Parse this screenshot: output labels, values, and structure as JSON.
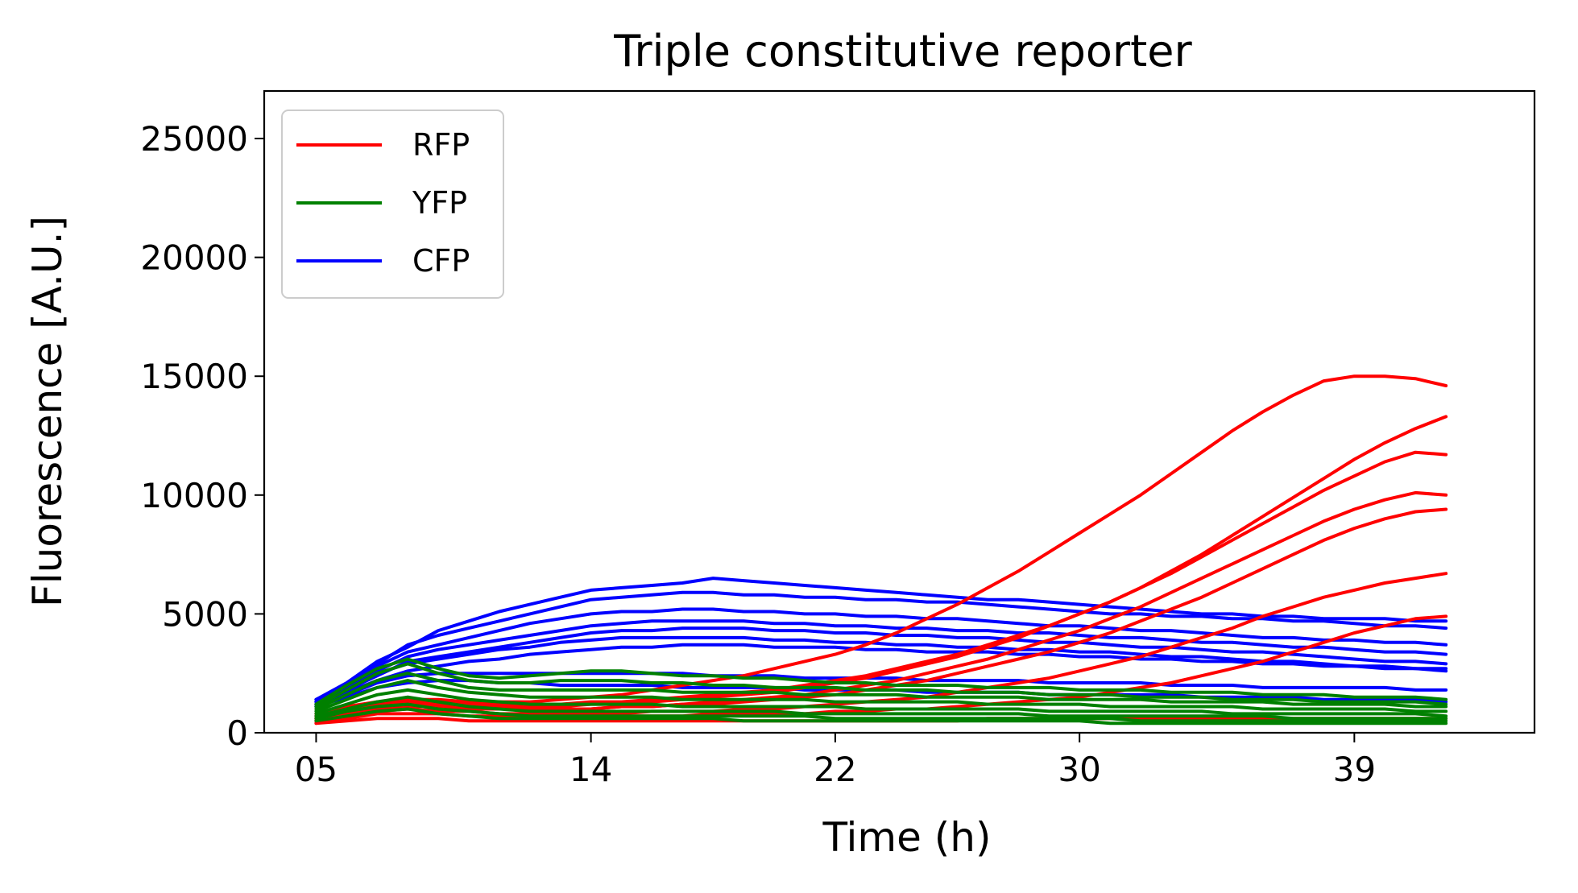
{
  "chart_data": {
    "type": "line",
    "title": "Triple constitutive reporter",
    "xlabel": "Time (h)",
    "ylabel": "Fluorescence [A.U.]",
    "x_ticks": [
      "05",
      "14",
      "22",
      "30",
      "39"
    ],
    "y_ticks": [
      "0",
      "5000",
      "10000",
      "15000",
      "20000",
      "25000"
    ],
    "xlim": [
      3.3,
      44.9
    ],
    "ylim": [
      0,
      27000
    ],
    "grid": false,
    "legend_position": "top-left",
    "legend": [
      {
        "label": "RFP",
        "color": "#ff0000"
      },
      {
        "label": "YFP",
        "color": "#008000"
      },
      {
        "label": "CFP",
        "color": "#0000ff"
      }
    ],
    "x": [
      5,
      6,
      7,
      8,
      9,
      10,
      11,
      12,
      13,
      14,
      15,
      16,
      17,
      18,
      19,
      20,
      21,
      22,
      23,
      24,
      25,
      26,
      27,
      28,
      29,
      30,
      31,
      32,
      33,
      34,
      35,
      36,
      37,
      38,
      39,
      40,
      41,
      42
    ],
    "series": [
      {
        "group": "CFP",
        "color": "#0000ff",
        "values": [
          1400,
          2100,
          3000,
          3600,
          4300,
          4700,
          5100,
          5400,
          5700,
          6000,
          6100,
          6200,
          6300,
          6500,
          6400,
          6300,
          6200,
          6100,
          6000,
          5900,
          5800,
          5700,
          5600,
          5600,
          5500,
          5400,
          5300,
          5200,
          5100,
          5000,
          5000,
          4900,
          4900,
          4800,
          4800,
          4800,
          4700,
          4700
        ]
      },
      {
        "group": "CFP",
        "color": "#0000ff",
        "values": [
          1300,
          2000,
          2900,
          3700,
          4100,
          4400,
          4700,
          5000,
          5300,
          5600,
          5700,
          5800,
          5900,
          5900,
          5800,
          5800,
          5700,
          5700,
          5600,
          5600,
          5500,
          5500,
          5400,
          5300,
          5200,
          5100,
          5000,
          5000,
          4900,
          4900,
          4800,
          4800,
          4700,
          4700,
          4600,
          4500,
          4500,
          4400
        ]
      },
      {
        "group": "CFP",
        "color": "#0000ff",
        "values": [
          1400,
          2000,
          2800,
          3400,
          3700,
          4000,
          4300,
          4600,
          4800,
          5000,
          5100,
          5100,
          5200,
          5200,
          5100,
          5100,
          5000,
          5000,
          4900,
          4900,
          4800,
          4800,
          4700,
          4600,
          4500,
          4500,
          4400,
          4300,
          4300,
          4200,
          4100,
          4000,
          4000,
          3900,
          3900,
          3800,
          3800,
          3700
        ]
      },
      {
        "group": "CFP",
        "color": "#0000ff",
        "values": [
          1300,
          1900,
          2600,
          3200,
          3500,
          3700,
          3900,
          4100,
          4300,
          4500,
          4600,
          4700,
          4700,
          4700,
          4700,
          4600,
          4600,
          4500,
          4500,
          4400,
          4400,
          4300,
          4300,
          4200,
          4200,
          4100,
          4000,
          4000,
          3900,
          3800,
          3800,
          3700,
          3600,
          3600,
          3500,
          3400,
          3400,
          3300
        ]
      },
      {
        "group": "CFP",
        "color": "#0000ff",
        "values": [
          1200,
          1800,
          2400,
          3000,
          3200,
          3400,
          3600,
          3800,
          4000,
          4200,
          4300,
          4300,
          4400,
          4400,
          4400,
          4300,
          4300,
          4200,
          4200,
          4100,
          4100,
          4000,
          4000,
          3900,
          3800,
          3800,
          3700,
          3600,
          3600,
          3500,
          3400,
          3400,
          3300,
          3200,
          3100,
          3000,
          3000,
          2900
        ]
      },
      {
        "group": "CFP",
        "color": "#0000ff",
        "values": [
          1300,
          1900,
          2500,
          2900,
          3100,
          3300,
          3500,
          3600,
          3800,
          3900,
          4000,
          4000,
          4000,
          4000,
          4000,
          3900,
          3900,
          3800,
          3800,
          3700,
          3700,
          3600,
          3600,
          3500,
          3500,
          3400,
          3400,
          3300,
          3200,
          3200,
          3100,
          3000,
          3000,
          2900,
          2800,
          2800,
          2700,
          2700
        ]
      },
      {
        "group": "CFP",
        "color": "#0000ff",
        "values": [
          1200,
          1700,
          2200,
          2600,
          2800,
          3000,
          3100,
          3300,
          3400,
          3500,
          3600,
          3600,
          3700,
          3700,
          3700,
          3600,
          3600,
          3600,
          3500,
          3500,
          3400,
          3400,
          3400,
          3300,
          3300,
          3200,
          3200,
          3100,
          3100,
          3000,
          3000,
          2900,
          2900,
          2800,
          2800,
          2700,
          2700,
          2600
        ]
      },
      {
        "group": "CFP",
        "color": "#0000ff",
        "values": [
          1100,
          1600,
          2100,
          2400,
          2500,
          2500,
          2500,
          2500,
          2500,
          2500,
          2500,
          2500,
          2500,
          2400,
          2400,
          2400,
          2300,
          2300,
          2300,
          2300,
          2200,
          2200,
          2200,
          2200,
          2100,
          2100,
          2100,
          2100,
          2000,
          2000,
          2000,
          1900,
          1900,
          1900,
          1900,
          1900,
          1800,
          1800
        ]
      },
      {
        "group": "CFP",
        "color": "#0000ff",
        "values": [
          1100,
          1500,
          1900,
          2100,
          2200,
          2200,
          2100,
          2100,
          2000,
          2000,
          2000,
          2000,
          1900,
          1900,
          1900,
          1900,
          1800,
          1800,
          1800,
          1800,
          1700,
          1700,
          1700,
          1700,
          1600,
          1600,
          1600,
          1600,
          1600,
          1500,
          1500,
          1500,
          1500,
          1400,
          1400,
          1400,
          1400,
          1300
        ]
      },
      {
        "group": "YFP",
        "color": "#008000",
        "values": [
          1200,
          2000,
          2700,
          3100,
          2700,
          2400,
          2300,
          2400,
          2500,
          2600,
          2600,
          2500,
          2400,
          2400,
          2300,
          2300,
          2200,
          2100,
          2100,
          2000,
          2000,
          2000,
          1900,
          1900,
          1900,
          1800,
          1800,
          1800,
          1700,
          1700,
          1700,
          1600,
          1600,
          1600,
          1500,
          1500,
          1500,
          1400
        ]
      },
      {
        "group": "YFP",
        "color": "#008000",
        "values": [
          1100,
          1800,
          2500,
          2900,
          2500,
          2200,
          2100,
          2100,
          2200,
          2200,
          2200,
          2100,
          2100,
          2000,
          2000,
          1900,
          1900,
          1900,
          1800,
          1800,
          1800,
          1700,
          1700,
          1700,
          1600,
          1600,
          1600,
          1500,
          1500,
          1500,
          1400,
          1400,
          1400,
          1300,
          1300,
          1300,
          1300,
          1200
        ]
      },
      {
        "group": "YFP",
        "color": "#008000",
        "values": [
          1000,
          1600,
          2200,
          2500,
          2200,
          1900,
          1800,
          1800,
          1800,
          1800,
          1800,
          1800,
          1700,
          1700,
          1700,
          1700,
          1600,
          1600,
          1600,
          1600,
          1500,
          1500,
          1500,
          1500,
          1400,
          1400,
          1400,
          1400,
          1300,
          1300,
          1300,
          1300,
          1200,
          1200,
          1200,
          1200,
          1100,
          1100
        ]
      },
      {
        "group": "YFP",
        "color": "#008000",
        "values": [
          900,
          1400,
          1900,
          2200,
          1900,
          1700,
          1600,
          1500,
          1500,
          1500,
          1500,
          1500,
          1400,
          1400,
          1400,
          1400,
          1400,
          1300,
          1300,
          1300,
          1300,
          1300,
          1200,
          1200,
          1200,
          1200,
          1100,
          1100,
          1100,
          1100,
          1100,
          1000,
          1000,
          1000,
          1000,
          1000,
          900,
          900
        ]
      },
      {
        "group": "YFP",
        "color": "#008000",
        "values": [
          800,
          1200,
          1600,
          1800,
          1600,
          1400,
          1300,
          1200,
          1200,
          1200,
          1200,
          1200,
          1100,
          1100,
          1100,
          1100,
          1100,
          1100,
          1000,
          1000,
          1000,
          1000,
          1000,
          1000,
          900,
          900,
          900,
          900,
          900,
          900,
          800,
          800,
          800,
          800,
          800,
          800,
          800,
          700
        ]
      },
      {
        "group": "YFP",
        "color": "#008000",
        "values": [
          700,
          1000,
          1300,
          1500,
          1300,
          1100,
          1000,
          900,
          900,
          900,
          900,
          900,
          900,
          900,
          900,
          900,
          800,
          800,
          800,
          800,
          800,
          800,
          800,
          800,
          700,
          700,
          700,
          700,
          700,
          700,
          700,
          700,
          600,
          600,
          600,
          600,
          600,
          600
        ]
      },
      {
        "group": "YFP",
        "color": "#008000",
        "values": [
          600,
          900,
          1100,
          1200,
          1000,
          900,
          800,
          700,
          700,
          700,
          700,
          700,
          700,
          700,
          700,
          700,
          700,
          600,
          600,
          600,
          600,
          600,
          600,
          600,
          600,
          600,
          600,
          500,
          500,
          500,
          500,
          500,
          500,
          500,
          500,
          500,
          500,
          500
        ]
      },
      {
        "group": "YFP",
        "color": "#008000",
        "values": [
          500,
          700,
          900,
          1000,
          800,
          700,
          600,
          600,
          600,
          600,
          600,
          600,
          600,
          600,
          500,
          500,
          500,
          500,
          500,
          500,
          500,
          500,
          500,
          500,
          500,
          500,
          400,
          400,
          400,
          400,
          400,
          400,
          400,
          400,
          400,
          400,
          400,
          400
        ]
      },
      {
        "group": "RFP",
        "color": "#ff0000",
        "values": [
          800,
          1100,
          1300,
          1400,
          1400,
          1300,
          1300,
          1300,
          1400,
          1500,
          1600,
          1800,
          2000,
          2200,
          2400,
          2700,
          3000,
          3300,
          3700,
          4200,
          4800,
          5400,
          6100,
          6800,
          7600,
          8400,
          9200,
          10000,
          10900,
          11800,
          12700,
          13500,
          14200,
          14800,
          15000,
          15000,
          14900,
          14600
        ]
      },
      {
        "group": "RFP",
        "color": "#ff0000",
        "values": [
          600,
          900,
          1100,
          1200,
          1200,
          1100,
          1100,
          1100,
          1100,
          1200,
          1200,
          1300,
          1400,
          1500,
          1600,
          1700,
          1900,
          2100,
          2300,
          2600,
          2900,
          3200,
          3600,
          4000,
          4500,
          5000,
          5500,
          6100,
          6800,
          7500,
          8300,
          9100,
          9900,
          10700,
          11500,
          12200,
          12800,
          13300
        ]
      },
      {
        "group": "RFP",
        "color": "#ff0000",
        "values": [
          700,
          1000,
          1200,
          1300,
          1300,
          1200,
          1200,
          1200,
          1200,
          1300,
          1300,
          1400,
          1500,
          1600,
          1700,
          1800,
          2000,
          2200,
          2400,
          2700,
          3000,
          3300,
          3700,
          4100,
          4500,
          5000,
          5500,
          6100,
          6700,
          7400,
          8100,
          8800,
          9500,
          10200,
          10800,
          11400,
          11800,
          11700
        ]
      },
      {
        "group": "RFP",
        "color": "#ff0000",
        "values": [
          500,
          800,
          1000,
          1100,
          1100,
          1000,
          1000,
          1000,
          1000,
          1000,
          1100,
          1100,
          1200,
          1300,
          1400,
          1500,
          1600,
          1800,
          2000,
          2200,
          2500,
          2800,
          3100,
          3500,
          3900,
          4300,
          4800,
          5300,
          5900,
          6500,
          7100,
          7700,
          8300,
          8900,
          9400,
          9800,
          10100,
          10000
        ]
      },
      {
        "group": "RFP",
        "color": "#ff0000",
        "values": [
          600,
          900,
          1100,
          1200,
          1100,
          1100,
          1000,
          1000,
          1000,
          1000,
          1100,
          1100,
          1200,
          1200,
          1300,
          1400,
          1500,
          1600,
          1800,
          2000,
          2200,
          2500,
          2800,
          3100,
          3400,
          3800,
          4200,
          4700,
          5200,
          5700,
          6300,
          6900,
          7500,
          8100,
          8600,
          9000,
          9300,
          9400
        ]
      },
      {
        "group": "RFP",
        "color": "#ff0000",
        "values": [
          500,
          700,
          900,
          1000,
          900,
          900,
          800,
          800,
          800,
          800,
          800,
          900,
          900,
          900,
          1000,
          1000,
          1100,
          1200,
          1300,
          1400,
          1500,
          1700,
          1900,
          2100,
          2300,
          2600,
          2900,
          3200,
          3600,
          4000,
          4400,
          4900,
          5300,
          5700,
          6000,
          6300,
          6500,
          6700
        ]
      },
      {
        "group": "RFP",
        "color": "#ff0000",
        "values": [
          400,
          600,
          800,
          800,
          800,
          700,
          700,
          700,
          700,
          700,
          700,
          700,
          700,
          800,
          800,
          800,
          800,
          900,
          900,
          1000,
          1000,
          1100,
          1200,
          1300,
          1400,
          1500,
          1700,
          1900,
          2100,
          2400,
          2700,
          3000,
          3400,
          3800,
          4200,
          4500,
          4800,
          4900
        ]
      },
      {
        "group": "RFP",
        "color": "#ff0000",
        "values": [
          400,
          500,
          600,
          600,
          600,
          500,
          500,
          500,
          500,
          500,
          500,
          500,
          500,
          500,
          500,
          500,
          500,
          500,
          500,
          500,
          500,
          500,
          600,
          600,
          600,
          600,
          600,
          600,
          600,
          600,
          600,
          600,
          600,
          600,
          600,
          600,
          600,
          600
        ]
      }
    ]
  }
}
